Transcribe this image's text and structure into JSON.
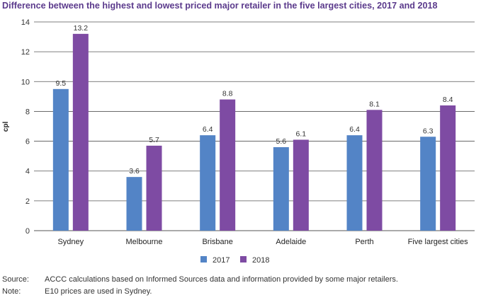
{
  "chart_data": {
    "type": "bar",
    "title": "Difference between the highest and lowest priced major retailer in the five largest cities, 2017 and 2018",
    "ylabel": "cpl",
    "xlabel": "",
    "ylim": [
      0,
      14
    ],
    "yticks": [
      0,
      2,
      4,
      6,
      8,
      10,
      12,
      14
    ],
    "grid": true,
    "legend_position": "bottom-center",
    "categories": [
      "Sydney",
      "Melbourne",
      "Brisbane",
      "Adelaide",
      "Perth",
      "Five largest cities"
    ],
    "series": [
      {
        "name": "2017",
        "color": "#5384c6",
        "values": [
          9.5,
          3.6,
          6.4,
          5.6,
          6.4,
          6.3
        ]
      },
      {
        "name": "2018",
        "color": "#7e4ba3",
        "values": [
          13.2,
          5.7,
          8.8,
          6.1,
          8.1,
          8.4
        ]
      }
    ]
  },
  "notes": [
    {
      "key": "Source:",
      "text": "ACCC calculations based on Informed Sources data and information provided by some major retailers."
    },
    {
      "key": "Note:",
      "text": "E10 prices are used in Sydney."
    }
  ]
}
